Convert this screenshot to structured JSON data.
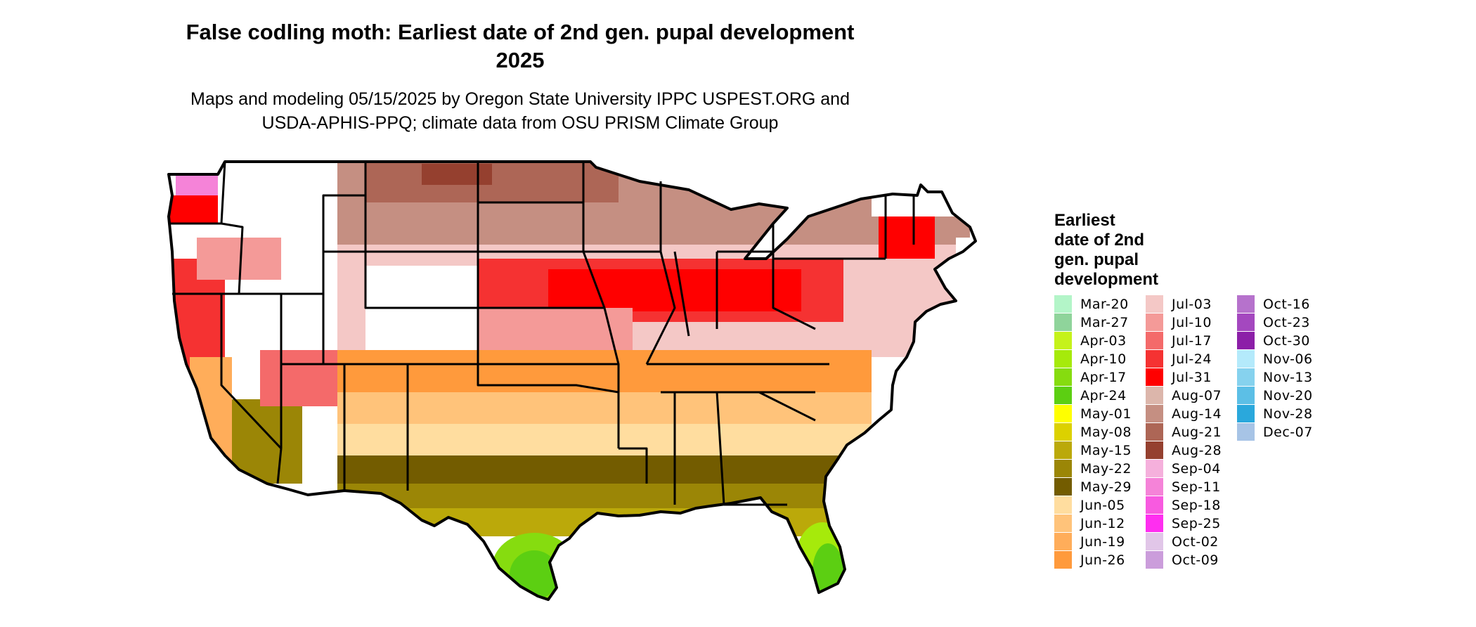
{
  "title_lines": [
    "False codling moth: Earliest date of 2nd gen. pupal development",
    "2025"
  ],
  "subtitle_lines": [
    "Maps and modeling 05/15/2025 by Oregon State University IPPC USPEST.ORG and",
    "USDA-APHIS-PPQ; climate data from OSU PRISM Climate Group"
  ],
  "legend": {
    "title_lines": [
      "Earliest",
      "date of 2nd",
      "gen. pupal",
      "development"
    ],
    "items": [
      {
        "label": "Mar-20",
        "color": "#b3f5c8"
      },
      {
        "label": "Mar-27",
        "color": "#8fd49b"
      },
      {
        "label": "Apr-03",
        "color": "#c5f21a"
      },
      {
        "label": "Apr-10",
        "color": "#a6ea0b"
      },
      {
        "label": "Apr-17",
        "color": "#86dc0f"
      },
      {
        "label": "Apr-24",
        "color": "#5ccf12"
      },
      {
        "label": "May-01",
        "color": "#ffff00"
      },
      {
        "label": "May-08",
        "color": "#dcd100"
      },
      {
        "label": "May-15",
        "color": "#bba90a"
      },
      {
        "label": "May-22",
        "color": "#9b8606"
      },
      {
        "label": "May-29",
        "color": "#735c00"
      },
      {
        "label": "Jun-05",
        "color": "#ffdd9f"
      },
      {
        "label": "Jun-12",
        "color": "#ffc37a"
      },
      {
        "label": "Jun-19",
        "color": "#ffad5a"
      },
      {
        "label": "Jun-26",
        "color": "#ff9a3c"
      },
      {
        "label": "Jul-03",
        "color": "#f4c8c6"
      },
      {
        "label": "Jul-10",
        "color": "#f49a98"
      },
      {
        "label": "Jul-17",
        "color": "#f46a6a"
      },
      {
        "label": "Jul-24",
        "color": "#f53232"
      },
      {
        "label": "Jul-31",
        "color": "#ff0000"
      },
      {
        "label": "Aug-07",
        "color": "#dcb6ab"
      },
      {
        "label": "Aug-14",
        "color": "#c58f82"
      },
      {
        "label": "Aug-21",
        "color": "#ad6656"
      },
      {
        "label": "Aug-28",
        "color": "#95402f"
      },
      {
        "label": "Sep-04",
        "color": "#f5b0dc"
      },
      {
        "label": "Sep-11",
        "color": "#f583d8"
      },
      {
        "label": "Sep-18",
        "color": "#f85ae0"
      },
      {
        "label": "Sep-25",
        "color": "#ff2ef0"
      },
      {
        "label": "Oct-02",
        "color": "#e1c6e8"
      },
      {
        "label": "Oct-09",
        "color": "#cb9ddb"
      },
      {
        "label": "Oct-16",
        "color": "#b672cc"
      },
      {
        "label": "Oct-23",
        "color": "#a448bf"
      },
      {
        "label": "Oct-30",
        "color": "#8c1fa8"
      },
      {
        "label": "Nov-06",
        "color": "#b4eafb"
      },
      {
        "label": "Nov-13",
        "color": "#86d2ee"
      },
      {
        "label": "Nov-20",
        "color": "#5cbfe6"
      },
      {
        "label": "Nov-28",
        "color": "#2aa8dc"
      },
      {
        "label": "Dec-07",
        "color": "#a7c4e6"
      }
    ]
  }
}
